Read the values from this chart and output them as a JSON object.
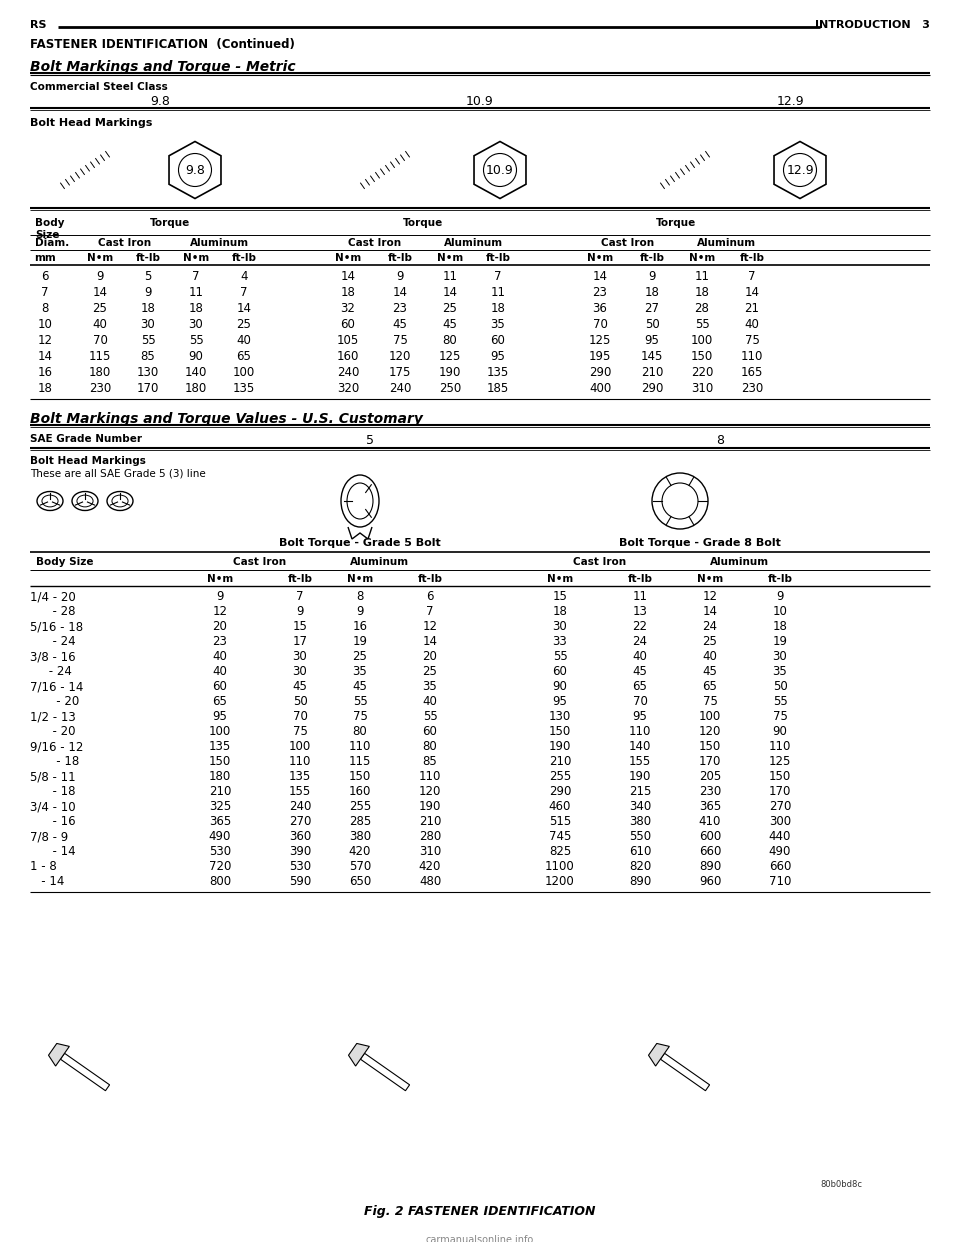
{
  "bg_color": "#ffffff",
  "text_color": "#000000",
  "page_header_left": "RS",
  "page_header_right": "INTRODUCTION   3",
  "section_title": "FASTENER IDENTIFICATION  (Continued)",
  "metric_section_title": "Bolt Markings and Torque - Metric",
  "metric_label": "Commercial Steel Class",
  "metric_classes": [
    "9.8",
    "10.9",
    "12.9"
  ],
  "bolt_head_markings_label": "Bolt Head Markings",
  "metric_data": [
    [
      6,
      9,
      5,
      7,
      4,
      14,
      9,
      11,
      7,
      14,
      9,
      11,
      7
    ],
    [
      7,
      14,
      9,
      11,
      7,
      18,
      14,
      14,
      11,
      23,
      18,
      18,
      14
    ],
    [
      8,
      25,
      18,
      18,
      14,
      32,
      23,
      25,
      18,
      36,
      27,
      28,
      21
    ],
    [
      10,
      40,
      30,
      30,
      25,
      60,
      45,
      45,
      35,
      70,
      50,
      55,
      40
    ],
    [
      12,
      70,
      55,
      55,
      40,
      105,
      75,
      80,
      60,
      125,
      95,
      100,
      75
    ],
    [
      14,
      115,
      85,
      90,
      65,
      160,
      120,
      125,
      95,
      195,
      145,
      150,
      110
    ],
    [
      16,
      180,
      130,
      140,
      100,
      240,
      175,
      190,
      135,
      290,
      210,
      220,
      165
    ],
    [
      18,
      230,
      170,
      180,
      135,
      320,
      240,
      250,
      185,
      400,
      290,
      310,
      230
    ]
  ],
  "us_section_title": "Bolt Markings and Torque Values - U.S. Customary",
  "sae_grade_label": "SAE Grade Number",
  "sae_grades": [
    "5",
    "8"
  ],
  "bolt_head_markings_label2": "Bolt Head Markings",
  "bolt_head_markings_sub": "These are all SAE Grade 5 (3) line",
  "grade5_label": "Bolt Torque - Grade 5 Bolt",
  "grade8_label": "Bolt Torque - Grade 8 Bolt",
  "us_data": [
    [
      "1/4 - 20",
      9,
      7,
      8,
      6,
      15,
      11,
      12,
      9
    ],
    [
      "      - 28",
      12,
      9,
      9,
      7,
      18,
      13,
      14,
      10
    ],
    [
      "5/16 - 18",
      20,
      15,
      16,
      12,
      30,
      22,
      24,
      18
    ],
    [
      "      - 24",
      23,
      17,
      19,
      14,
      33,
      24,
      25,
      19
    ],
    [
      "3/8 - 16",
      40,
      30,
      25,
      20,
      55,
      40,
      40,
      30
    ],
    [
      "     - 24",
      40,
      30,
      35,
      25,
      60,
      45,
      45,
      35
    ],
    [
      "7/16 - 14",
      60,
      45,
      45,
      35,
      90,
      65,
      65,
      50
    ],
    [
      "       - 20",
      65,
      50,
      55,
      40,
      95,
      70,
      75,
      55
    ],
    [
      "1/2 - 13",
      95,
      70,
      75,
      55,
      130,
      95,
      100,
      75
    ],
    [
      "      - 20",
      100,
      75,
      80,
      60,
      150,
      110,
      120,
      90
    ],
    [
      "9/16 - 12",
      135,
      100,
      110,
      80,
      190,
      140,
      150,
      110
    ],
    [
      "       - 18",
      150,
      110,
      115,
      85,
      210,
      155,
      170,
      125
    ],
    [
      "5/8 - 11",
      180,
      135,
      150,
      110,
      255,
      190,
      205,
      150
    ],
    [
      "      - 18",
      210,
      155,
      160,
      120,
      290,
      215,
      230,
      170
    ],
    [
      "3/4 - 10",
      325,
      240,
      255,
      190,
      460,
      340,
      365,
      270
    ],
    [
      "      - 16",
      365,
      270,
      285,
      210,
      515,
      380,
      410,
      300
    ],
    [
      "7/8 - 9",
      490,
      360,
      380,
      280,
      745,
      550,
      600,
      440
    ],
    [
      "      - 14",
      530,
      390,
      420,
      310,
      825,
      610,
      660,
      490
    ],
    [
      "1 - 8",
      720,
      530,
      570,
      420,
      1100,
      820,
      890,
      660
    ],
    [
      "   - 14",
      800,
      590,
      650,
      480,
      1200,
      890,
      960,
      710
    ]
  ],
  "figure_caption": "Fig. 2 FASTENER IDENTIFICATION",
  "figure_ref": "80b0bd8c"
}
